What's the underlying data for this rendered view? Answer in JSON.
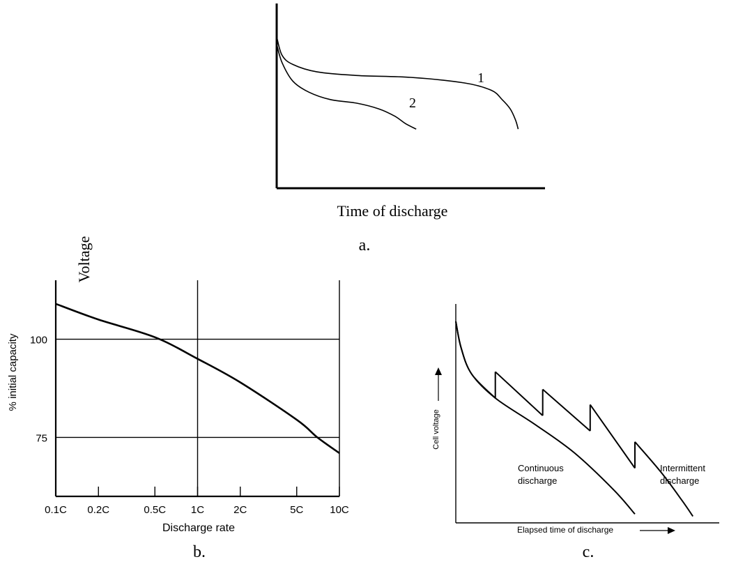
{
  "chart_data": [
    {
      "type": "line",
      "panel_label": "a.",
      "title": "",
      "xlabel": "Time of discharge",
      "ylabel": "Voltage",
      "x_ticks": [],
      "y_ticks": [],
      "xlim": [
        0,
        1
      ],
      "ylim": [
        0,
        1
      ],
      "grid": false,
      "series": [
        {
          "name": "1",
          "x": [
            0.0,
            0.02,
            0.06,
            0.15,
            0.3,
            0.5,
            0.7,
            0.8,
            0.84,
            0.87,
            0.89,
            0.9
          ],
          "y": [
            0.82,
            0.72,
            0.67,
            0.63,
            0.61,
            0.6,
            0.57,
            0.53,
            0.48,
            0.43,
            0.37,
            0.32
          ]
        },
        {
          "name": "2",
          "x": [
            0.0,
            0.02,
            0.06,
            0.12,
            0.2,
            0.3,
            0.38,
            0.44,
            0.48,
            0.52
          ],
          "y": [
            0.78,
            0.68,
            0.58,
            0.52,
            0.48,
            0.46,
            0.43,
            0.39,
            0.35,
            0.32
          ]
        }
      ]
    },
    {
      "type": "line",
      "panel_label": "b.",
      "title": "",
      "xlabel": "Discharge rate",
      "ylabel": "% initial capacity",
      "x_scale": "log",
      "x_ticks": [
        "0.1C",
        "0.2C",
        "0.5C",
        "1C",
        "2C",
        "5C",
        "10C"
      ],
      "x_tick_values": [
        0.1,
        0.2,
        0.5,
        1,
        2,
        5,
        10
      ],
      "y_ticks": [
        "75",
        "100"
      ],
      "y_tick_values": [
        75,
        100
      ],
      "xlim": [
        0.1,
        10
      ],
      "ylim": [
        60,
        115
      ],
      "grid": true,
      "grid_lines": {
        "x": [
          1,
          10
        ],
        "y": [
          75,
          100
        ]
      },
      "series": [
        {
          "x": [
            0.1,
            0.2,
            0.5,
            1,
            2,
            5,
            7,
            10
          ],
          "y": [
            109,
            105,
            100.5,
            95,
            89,
            79.5,
            75,
            71
          ]
        }
      ]
    },
    {
      "type": "line",
      "panel_label": "c.",
      "title": "",
      "xlabel": "Elapsed time of discharge",
      "ylabel": "Cell voltage",
      "x_ticks": [],
      "y_ticks": [],
      "xlim": [
        0,
        1
      ],
      "ylim": [
        0,
        1
      ],
      "grid": false,
      "annotations": [
        "Continuous discharge",
        "Intermittent discharge"
      ],
      "series": [
        {
          "name": "Continuous discharge",
          "x": [
            0.0,
            0.02,
            0.06,
            0.15,
            0.3,
            0.45,
            0.6,
            0.68
          ],
          "y": [
            0.92,
            0.8,
            0.68,
            0.57,
            0.45,
            0.32,
            0.15,
            0.04
          ]
        },
        {
          "name": "Intermittent discharge",
          "x": [
            0.0,
            0.02,
            0.06,
            0.15,
            0.15,
            0.33,
            0.33,
            0.51,
            0.51,
            0.68,
            0.68,
            0.78,
            0.86,
            0.9
          ],
          "y": [
            0.92,
            0.8,
            0.68,
            0.57,
            0.69,
            0.49,
            0.61,
            0.42,
            0.54,
            0.25,
            0.37,
            0.23,
            0.1,
            0.03
          ]
        }
      ]
    }
  ]
}
